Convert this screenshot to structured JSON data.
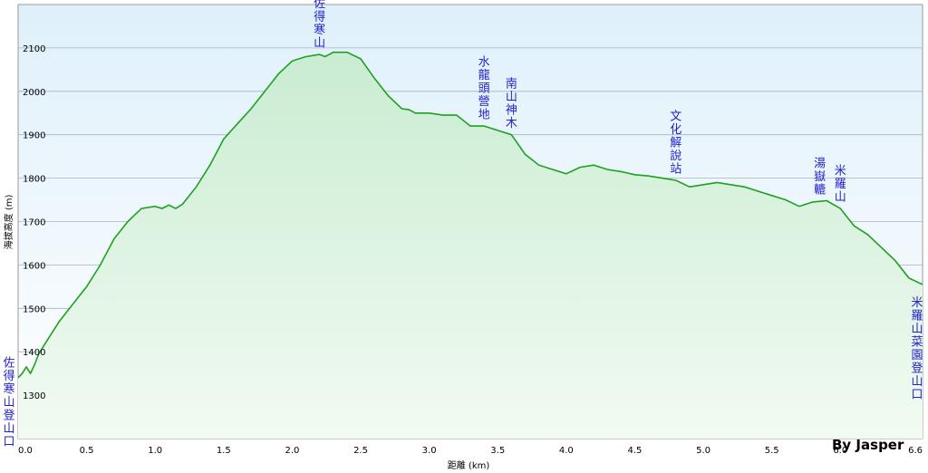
{
  "chart_data": {
    "type": "area",
    "xlabel": "距離 (km)",
    "ylabel": "海拔高度 (m)",
    "xlim": [
      0,
      6.6
    ],
    "ylim": [
      1200,
      2200
    ],
    "x_ticks": [
      "0.0",
      "0.5",
      "1.0",
      "1.5",
      "2.0",
      "2.5",
      "3.0",
      "3.5",
      "4.0",
      "4.5",
      "5.0",
      "5.5",
      "6.0",
      "6.6"
    ],
    "y_ticks": [
      "1300",
      "1400",
      "1500",
      "1600",
      "1700",
      "1800",
      "1900",
      "2000",
      "2100"
    ],
    "grid": true,
    "colors": {
      "line": "#1fa01f",
      "fill_top": "#c9ecd2",
      "fill_bottom": "#f2fbf2",
      "bg_top": "#dff0fb",
      "bg_bottom": "#ffffff",
      "label": "#2222cc"
    },
    "series": [
      {
        "x": [
          0.0,
          0.03,
          0.06,
          0.09,
          0.12,
          0.15,
          0.2,
          0.3,
          0.4,
          0.5,
          0.6,
          0.7,
          0.8,
          0.9,
          1.0,
          1.05,
          1.1,
          1.15,
          1.2,
          1.25,
          1.3,
          1.4,
          1.5,
          1.6,
          1.7,
          1.8,
          1.85,
          1.9,
          2.0,
          2.1,
          2.2,
          2.24,
          2.3,
          2.4,
          2.5,
          2.6,
          2.7,
          2.8,
          2.85,
          2.9,
          3.0,
          3.1,
          3.2,
          3.3,
          3.4,
          3.5,
          3.6,
          3.7,
          3.8,
          3.9,
          4.0,
          4.1,
          4.2,
          4.3,
          4.4,
          4.5,
          4.6,
          4.7,
          4.8,
          4.9,
          5.0,
          5.1,
          5.2,
          5.3,
          5.4,
          5.5,
          5.6,
          5.7,
          5.8,
          5.9,
          6.0,
          6.1,
          6.2,
          6.3,
          6.4,
          6.5,
          6.6
        ],
        "y": [
          1340,
          1350,
          1365,
          1350,
          1370,
          1395,
          1420,
          1470,
          1510,
          1550,
          1600,
          1660,
          1700,
          1730,
          1735,
          1730,
          1738,
          1730,
          1740,
          1760,
          1780,
          1830,
          1890,
          1925,
          1960,
          2000,
          2020,
          2040,
          2070,
          2080,
          2085,
          2080,
          2090,
          2090,
          2075,
          2030,
          1990,
          1960,
          1958,
          1950,
          1950,
          1945,
          1945,
          1920,
          1920,
          1910,
          1900,
          1855,
          1830,
          1820,
          1810,
          1825,
          1830,
          1820,
          1815,
          1808,
          1805,
          1800,
          1795,
          1780,
          1785,
          1790,
          1785,
          1780,
          1770,
          1760,
          1750,
          1735,
          1745,
          1748,
          1730,
          1690,
          1670,
          1640,
          1610,
          1570,
          1555
        ]
      }
    ],
    "annotations": [
      {
        "text": "佐得寒山登山口",
        "x": 0.0
      },
      {
        "text": "佐得寒山",
        "x": 2.2
      },
      {
        "text": "水龍頭營地",
        "x": 3.4
      },
      {
        "text": "南山神木",
        "x": 3.6
      },
      {
        "text": "文化解說站",
        "x": 4.8
      },
      {
        "text": "湯嶽轆",
        "x": 5.85
      },
      {
        "text": "米羅山",
        "x": 6.0
      },
      {
        "text": "米羅山菜園登山口",
        "x": 6.6
      }
    ],
    "credit": "By Jasper"
  }
}
